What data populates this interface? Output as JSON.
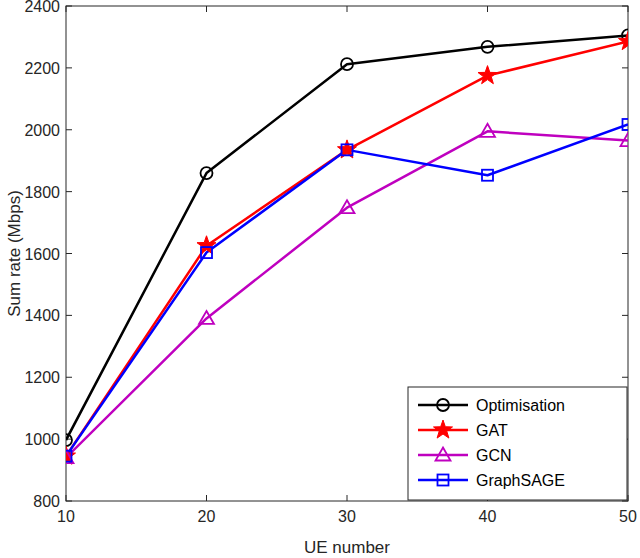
{
  "chart_data": {
    "type": "line",
    "x_label": "UE number",
    "y_label": "Sum rate (Mbps)",
    "x": [
      10,
      20,
      30,
      40,
      50
    ],
    "xlim": [
      10,
      50
    ],
    "xticks": [
      10,
      20,
      30,
      40,
      50
    ],
    "ylim": [
      800,
      2400
    ],
    "yticks": [
      800,
      1000,
      1200,
      1400,
      1600,
      1800,
      2000,
      2200,
      2400
    ],
    "grid": false,
    "legend": "lower right",
    "series": [
      {
        "name": "Optimisation",
        "color": "#000000",
        "marker": "circle",
        "values": [
          997,
          1860,
          2212,
          2268,
          2305
        ]
      },
      {
        "name": "GAT",
        "color": "#ff0000",
        "marker": "star",
        "values": [
          945,
          1625,
          1935,
          2175,
          2285
        ]
      },
      {
        "name": "GCN",
        "color": "#bf00bf",
        "marker": "triangle",
        "values": [
          940,
          1390,
          1748,
          1995,
          1965
        ]
      },
      {
        "name": "GraphSAGE",
        "color": "#0000ff",
        "marker": "square",
        "values": [
          945,
          1603,
          1935,
          1853,
          2017
        ]
      }
    ]
  }
}
